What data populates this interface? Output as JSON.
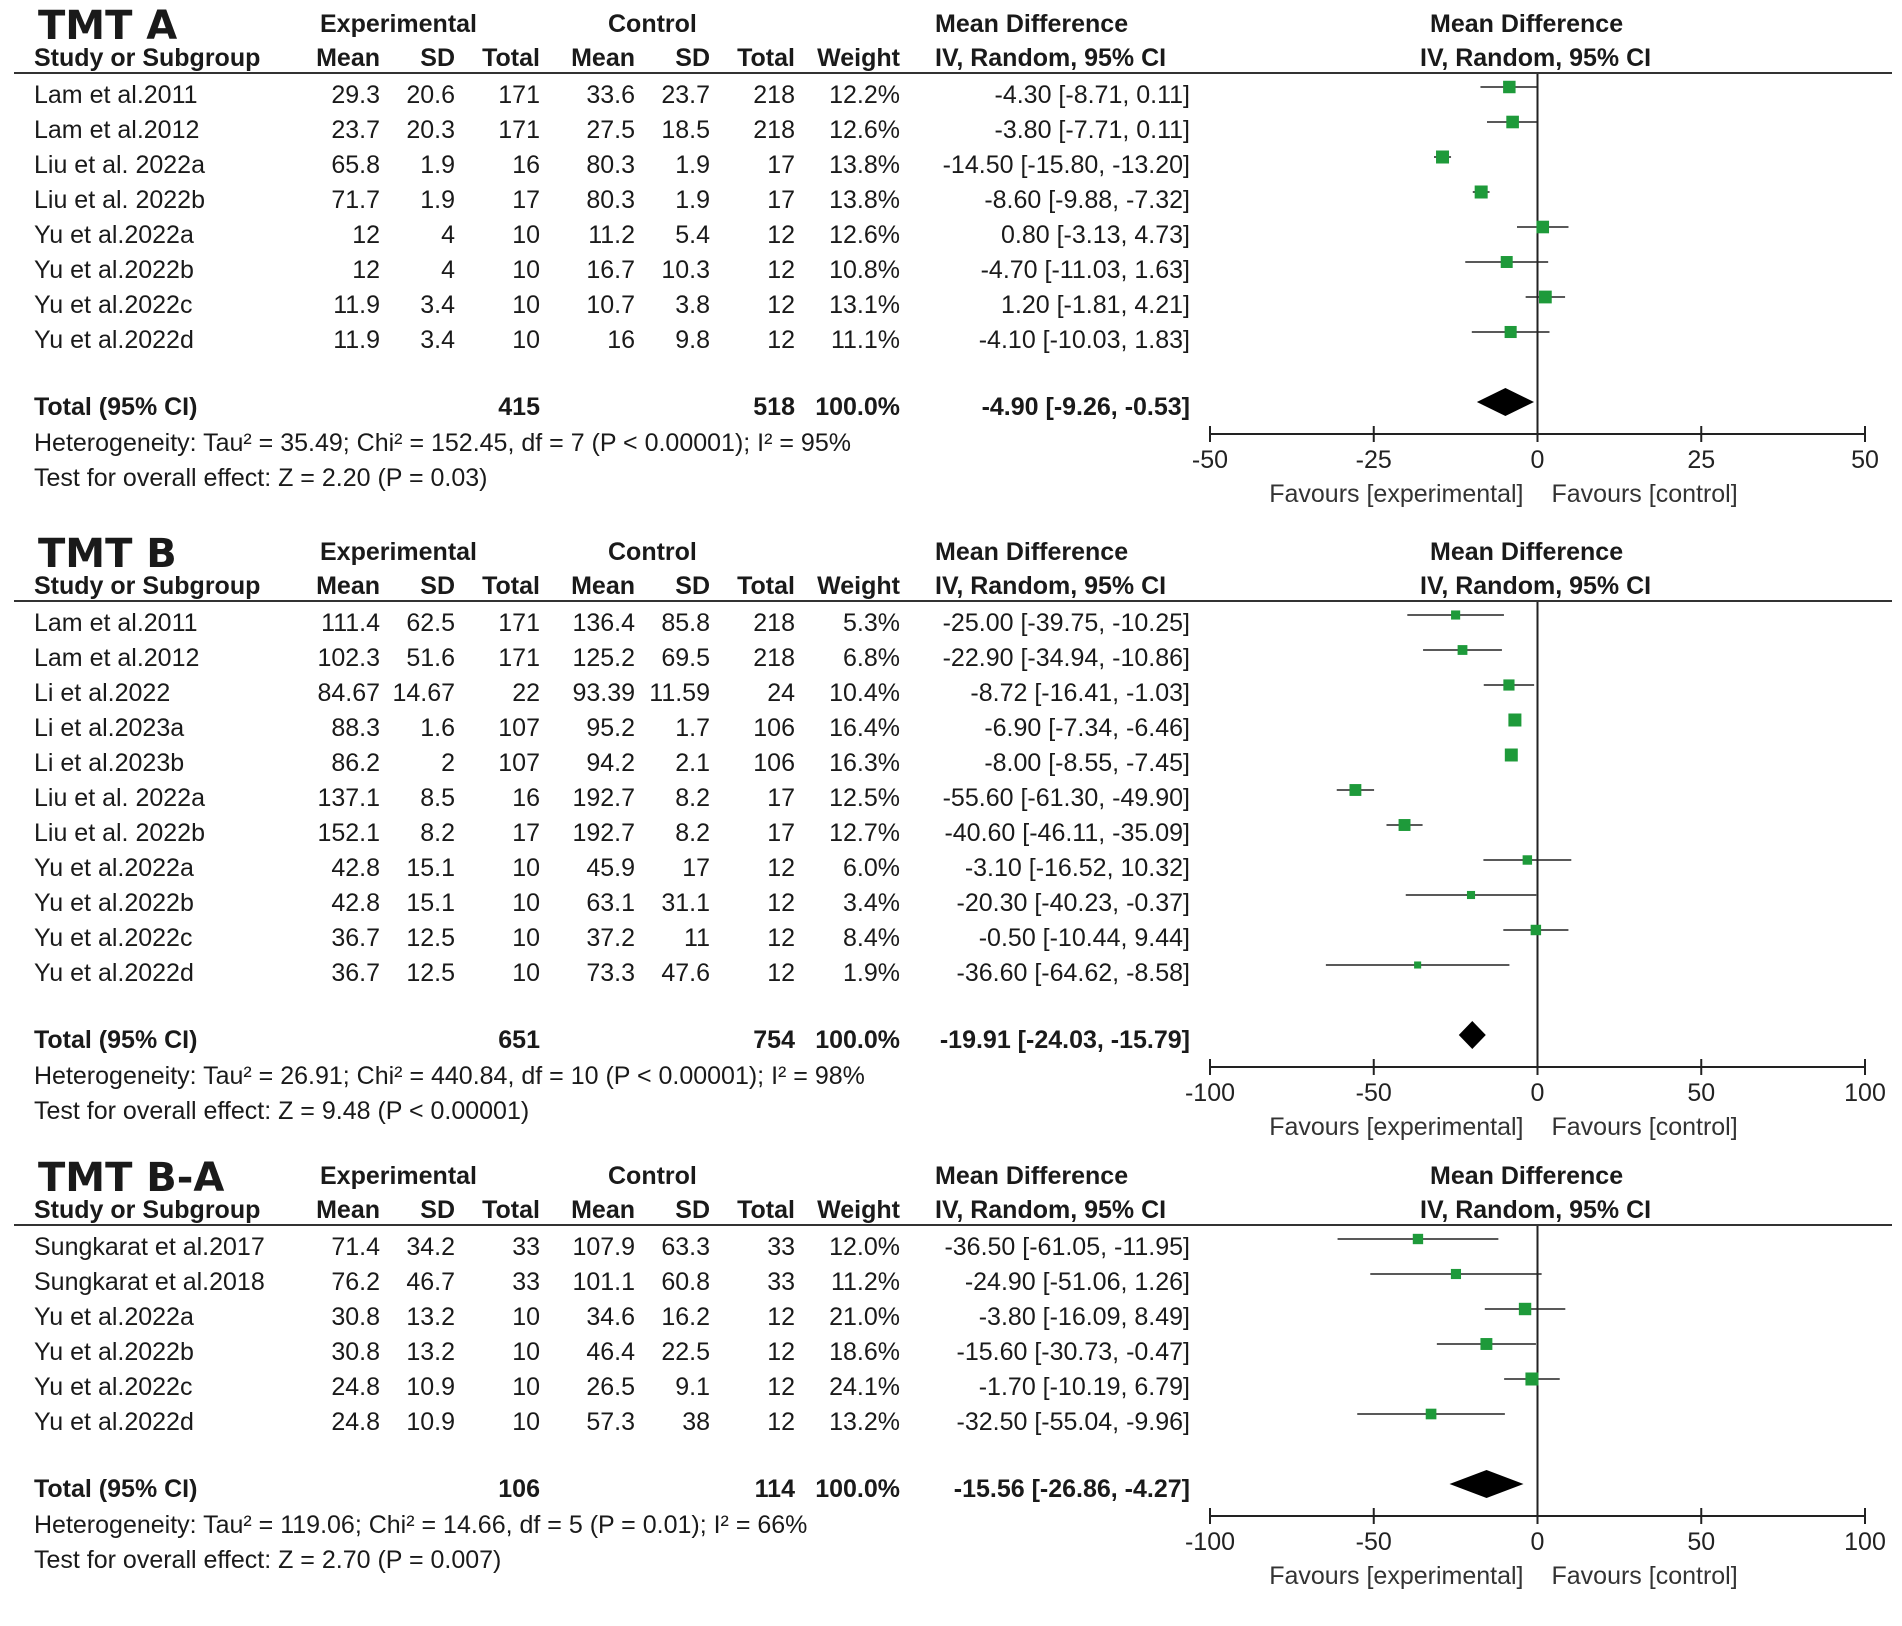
{
  "colors": {
    "marker": "#1e9a3a",
    "line": "#222222",
    "diamond": "#000000"
  },
  "chart_data": [
    {
      "type": "forest",
      "title": "TMT A",
      "headers": {
        "experimental": "Experimental",
        "control": "Control",
        "md_left": "Mean Difference",
        "md_left_sub": "IV, Random, 95% CI",
        "md_right": "Mean Difference",
        "md_right_sub": "IV, Random, 95% CI",
        "study": "Study or Subgroup",
        "mean": "Mean",
        "sd": "SD",
        "total": "Total",
        "weight": "Weight"
      },
      "studies": [
        {
          "study": "Lam et al.2011",
          "e_mean": "29.3",
          "e_sd": "20.6",
          "e_total": "171",
          "c_mean": "33.6",
          "c_sd": "23.7",
          "c_total": "218",
          "weight": "12.2%",
          "ci": "-4.30 [-8.71, 0.11]",
          "md": -4.3,
          "lo": -8.71,
          "hi": 0.11,
          "w": 12.2
        },
        {
          "study": "Lam et al.2012",
          "e_mean": "23.7",
          "e_sd": "20.3",
          "e_total": "171",
          "c_mean": "27.5",
          "c_sd": "18.5",
          "c_total": "218",
          "weight": "12.6%",
          "ci": "-3.80 [-7.71, 0.11]",
          "md": -3.8,
          "lo": -7.71,
          "hi": 0.11,
          "w": 12.6
        },
        {
          "study": "Liu et al. 2022a",
          "e_mean": "65.8",
          "e_sd": "1.9",
          "e_total": "16",
          "c_mean": "80.3",
          "c_sd": "1.9",
          "c_total": "17",
          "weight": "13.8%",
          "ci": "-14.50 [-15.80, -13.20]",
          "md": -14.5,
          "lo": -15.8,
          "hi": -13.2,
          "w": 13.8
        },
        {
          "study": "Liu et al. 2022b",
          "e_mean": "71.7",
          "e_sd": "1.9",
          "e_total": "17",
          "c_mean": "80.3",
          "c_sd": "1.9",
          "c_total": "17",
          "weight": "13.8%",
          "ci": "-8.60 [-9.88, -7.32]",
          "md": -8.6,
          "lo": -9.88,
          "hi": -7.32,
          "w": 13.8
        },
        {
          "study": "Yu et al.2022a",
          "e_mean": "12",
          "e_sd": "4",
          "e_total": "10",
          "c_mean": "11.2",
          "c_sd": "5.4",
          "c_total": "12",
          "weight": "12.6%",
          "ci": "0.80 [-3.13, 4.73]",
          "md": 0.8,
          "lo": -3.13,
          "hi": 4.73,
          "w": 12.6
        },
        {
          "study": "Yu et al.2022b",
          "e_mean": "12",
          "e_sd": "4",
          "e_total": "10",
          "c_mean": "16.7",
          "c_sd": "10.3",
          "c_total": "12",
          "weight": "10.8%",
          "ci": "-4.70 [-11.03, 1.63]",
          "md": -4.7,
          "lo": -11.03,
          "hi": 1.63,
          "w": 10.8
        },
        {
          "study": "Yu et al.2022c",
          "e_mean": "11.9",
          "e_sd": "3.4",
          "e_total": "10",
          "c_mean": "10.7",
          "c_sd": "3.8",
          "c_total": "12",
          "weight": "13.1%",
          "ci": "1.20 [-1.81, 4.21]",
          "md": 1.2,
          "lo": -1.81,
          "hi": 4.21,
          "w": 13.1
        },
        {
          "study": "Yu et al.2022d",
          "e_mean": "11.9",
          "e_sd": "3.4",
          "e_total": "10",
          "c_mean": "16",
          "c_sd": "9.8",
          "c_total": "12",
          "weight": "11.1%",
          "ci": "-4.10 [-10.03, 1.83]",
          "md": -4.1,
          "lo": -10.03,
          "hi": 1.83,
          "w": 11.1
        }
      ],
      "total": {
        "label": "Total (95% CI)",
        "e_total": "415",
        "c_total": "518",
        "weight": "100.0%",
        "ci": "-4.90 [-9.26, -0.53]",
        "md": -4.9,
        "lo": -9.26,
        "hi": -0.53
      },
      "heterogeneity": "Heterogeneity: Tau² = 35.49; Chi² = 152.45, df = 7 (P < 0.00001); I² = 95%",
      "overall": "Test for overall effect: Z = 2.20 (P = 0.03)",
      "axis": {
        "min": -50,
        "max": 50,
        "ticks": [
          -50,
          -25,
          0,
          25,
          50
        ],
        "tick_labels": [
          "-50",
          "-25",
          "0",
          "25",
          "50"
        ]
      },
      "favours_left": "Favours [experimental]",
      "favours_right": "Favours [control]"
    },
    {
      "type": "forest",
      "title": "TMT B",
      "headers": {
        "experimental": "Experimental",
        "control": "Control",
        "md_left": "Mean Difference",
        "md_left_sub": "IV, Random, 95% CI",
        "md_right": "Mean Difference",
        "md_right_sub": "IV, Random, 95% CI",
        "study": "Study or Subgroup",
        "mean": "Mean",
        "sd": "SD",
        "total": "Total",
        "weight": "Weight"
      },
      "studies": [
        {
          "study": "Lam et al.2011",
          "e_mean": "111.4",
          "e_sd": "62.5",
          "e_total": "171",
          "c_mean": "136.4",
          "c_sd": "85.8",
          "c_total": "218",
          "weight": "5.3%",
          "ci": "-25.00 [-39.75, -10.25]",
          "md": -25.0,
          "lo": -39.75,
          "hi": -10.25,
          "w": 5.3
        },
        {
          "study": "Lam et al.2012",
          "e_mean": "102.3",
          "e_sd": "51.6",
          "e_total": "171",
          "c_mean": "125.2",
          "c_sd": "69.5",
          "c_total": "218",
          "weight": "6.8%",
          "ci": "-22.90 [-34.94, -10.86]",
          "md": -22.9,
          "lo": -34.94,
          "hi": -10.86,
          "w": 6.8
        },
        {
          "study": "Li et al.2022",
          "e_mean": "84.67",
          "e_sd": "14.67",
          "e_total": "22",
          "c_mean": "93.39",
          "c_sd": "11.59",
          "c_total": "24",
          "weight": "10.4%",
          "ci": "-8.72 [-16.41, -1.03]",
          "md": -8.72,
          "lo": -16.41,
          "hi": -1.03,
          "w": 10.4
        },
        {
          "study": "Li et al.2023a",
          "e_mean": "88.3",
          "e_sd": "1.6",
          "e_total": "107",
          "c_mean": "95.2",
          "c_sd": "1.7",
          "c_total": "106",
          "weight": "16.4%",
          "ci": "-6.90 [-7.34, -6.46]",
          "md": -6.9,
          "lo": -7.34,
          "hi": -6.46,
          "w": 16.4
        },
        {
          "study": "Li et al.2023b",
          "e_mean": "86.2",
          "e_sd": "2",
          "e_total": "107",
          "c_mean": "94.2",
          "c_sd": "2.1",
          "c_total": "106",
          "weight": "16.3%",
          "ci": "-8.00 [-8.55, -7.45]",
          "md": -8.0,
          "lo": -8.55,
          "hi": -7.45,
          "w": 16.3
        },
        {
          "study": "Liu et al. 2022a",
          "e_mean": "137.1",
          "e_sd": "8.5",
          "e_total": "16",
          "c_mean": "192.7",
          "c_sd": "8.2",
          "c_total": "17",
          "weight": "12.5%",
          "ci": "-55.60 [-61.30, -49.90]",
          "md": -55.6,
          "lo": -61.3,
          "hi": -49.9,
          "w": 12.5
        },
        {
          "study": "Liu et al. 2022b",
          "e_mean": "152.1",
          "e_sd": "8.2",
          "e_total": "17",
          "c_mean": "192.7",
          "c_sd": "8.2",
          "c_total": "17",
          "weight": "12.7%",
          "ci": "-40.60 [-46.11, -35.09]",
          "md": -40.6,
          "lo": -46.11,
          "hi": -35.09,
          "w": 12.7
        },
        {
          "study": "Yu et al.2022a",
          "e_mean": "42.8",
          "e_sd": "15.1",
          "e_total": "10",
          "c_mean": "45.9",
          "c_sd": "17",
          "c_total": "12",
          "weight": "6.0%",
          "ci": "-3.10 [-16.52, 10.32]",
          "md": -3.1,
          "lo": -16.52,
          "hi": 10.32,
          "w": 6.0
        },
        {
          "study": "Yu et al.2022b",
          "e_mean": "42.8",
          "e_sd": "15.1",
          "e_total": "10",
          "c_mean": "63.1",
          "c_sd": "31.1",
          "c_total": "12",
          "weight": "3.4%",
          "ci": "-20.30 [-40.23, -0.37]",
          "md": -20.3,
          "lo": -40.23,
          "hi": -0.37,
          "w": 3.4
        },
        {
          "study": "Yu et al.2022c",
          "e_mean": "36.7",
          "e_sd": "12.5",
          "e_total": "10",
          "c_mean": "37.2",
          "c_sd": "11",
          "c_total": "12",
          "weight": "8.4%",
          "ci": "-0.50 [-10.44, 9.44]",
          "md": -0.5,
          "lo": -10.44,
          "hi": 9.44,
          "w": 8.4
        },
        {
          "study": "Yu et al.2022d",
          "e_mean": "36.7",
          "e_sd": "12.5",
          "e_total": "10",
          "c_mean": "73.3",
          "c_sd": "47.6",
          "c_total": "12",
          "weight": "1.9%",
          "ci": "-36.60 [-64.62, -8.58]",
          "md": -36.6,
          "lo": -64.62,
          "hi": -8.58,
          "w": 1.9
        }
      ],
      "total": {
        "label": "Total (95% CI)",
        "e_total": "651",
        "c_total": "754",
        "weight": "100.0%",
        "ci": "-19.91 [-24.03, -15.79]",
        "md": -19.91,
        "lo": -24.03,
        "hi": -15.79
      },
      "heterogeneity": "Heterogeneity: Tau² = 26.91; Chi² = 440.84, df = 10 (P < 0.00001); I² = 98%",
      "overall": "Test for overall effect: Z = 9.48 (P < 0.00001)",
      "axis": {
        "min": -100,
        "max": 100,
        "ticks": [
          -100,
          -50,
          0,
          50,
          100
        ],
        "tick_labels": [
          "-100",
          "-50",
          "0",
          "50",
          "100"
        ]
      },
      "favours_left": "Favours [experimental]",
      "favours_right": "Favours [control]"
    },
    {
      "type": "forest",
      "title": "TMT B-A",
      "headers": {
        "experimental": "Experimental",
        "control": "Control",
        "md_left": "Mean Difference",
        "md_left_sub": "IV, Random, 95% CI",
        "md_right": "Mean Difference",
        "md_right_sub": "IV, Random, 95% CI",
        "study": "Study or Subgroup",
        "mean": "Mean",
        "sd": "SD",
        "total": "Total",
        "weight": "Weight"
      },
      "studies": [
        {
          "study": "Sungkarat et al.2017",
          "e_mean": "71.4",
          "e_sd": "34.2",
          "e_total": "33",
          "c_mean": "107.9",
          "c_sd": "63.3",
          "c_total": "33",
          "weight": "12.0%",
          "ci": "-36.50 [-61.05, -11.95]",
          "md": -36.5,
          "lo": -61.05,
          "hi": -11.95,
          "w": 12.0
        },
        {
          "study": "Sungkarat et al.2018",
          "e_mean": "76.2",
          "e_sd": "46.7",
          "e_total": "33",
          "c_mean": "101.1",
          "c_sd": "60.8",
          "c_total": "33",
          "weight": "11.2%",
          "ci": "-24.90 [-51.06, 1.26]",
          "md": -24.9,
          "lo": -51.06,
          "hi": 1.26,
          "w": 11.2
        },
        {
          "study": "Yu et al.2022a",
          "e_mean": "30.8",
          "e_sd": "13.2",
          "e_total": "10",
          "c_mean": "34.6",
          "c_sd": "16.2",
          "c_total": "12",
          "weight": "21.0%",
          "ci": "-3.80 [-16.09, 8.49]",
          "md": -3.8,
          "lo": -16.09,
          "hi": 8.49,
          "w": 21.0
        },
        {
          "study": "Yu et al.2022b",
          "e_mean": "30.8",
          "e_sd": "13.2",
          "e_total": "10",
          "c_mean": "46.4",
          "c_sd": "22.5",
          "c_total": "12",
          "weight": "18.6%",
          "ci": "-15.60 [-30.73, -0.47]",
          "md": -15.6,
          "lo": -30.73,
          "hi": -0.47,
          "w": 18.6
        },
        {
          "study": "Yu et al.2022c",
          "e_mean": "24.8",
          "e_sd": "10.9",
          "e_total": "10",
          "c_mean": "26.5",
          "c_sd": "9.1",
          "c_total": "12",
          "weight": "24.1%",
          "ci": "-1.70 [-10.19, 6.79]",
          "md": -1.7,
          "lo": -10.19,
          "hi": 6.79,
          "w": 24.1
        },
        {
          "study": "Yu et al.2022d",
          "e_mean": "24.8",
          "e_sd": "10.9",
          "e_total": "10",
          "c_mean": "57.3",
          "c_sd": "38",
          "c_total": "12",
          "weight": "13.2%",
          "ci": "-32.50 [-55.04, -9.96]",
          "md": -32.5,
          "lo": -55.04,
          "hi": -9.96,
          "w": 13.2
        }
      ],
      "total": {
        "label": "Total (95% CI)",
        "e_total": "106",
        "c_total": "114",
        "weight": "100.0%",
        "ci": "-15.56 [-26.86, -4.27]",
        "md": -15.56,
        "lo": -26.86,
        "hi": -4.27
      },
      "heterogeneity": "Heterogeneity: Tau² = 119.06; Chi² = 14.66, df = 5 (P = 0.01); I² = 66%",
      "overall": "Test for overall effect: Z = 2.70 (P = 0.007)",
      "axis": {
        "min": -100,
        "max": 100,
        "ticks": [
          -100,
          -50,
          0,
          50,
          100
        ],
        "tick_labels": [
          "-100",
          "-50",
          "0",
          "50",
          "100"
        ]
      },
      "favours_left": "Favours [experimental]",
      "favours_right": "Favours [control]"
    }
  ]
}
